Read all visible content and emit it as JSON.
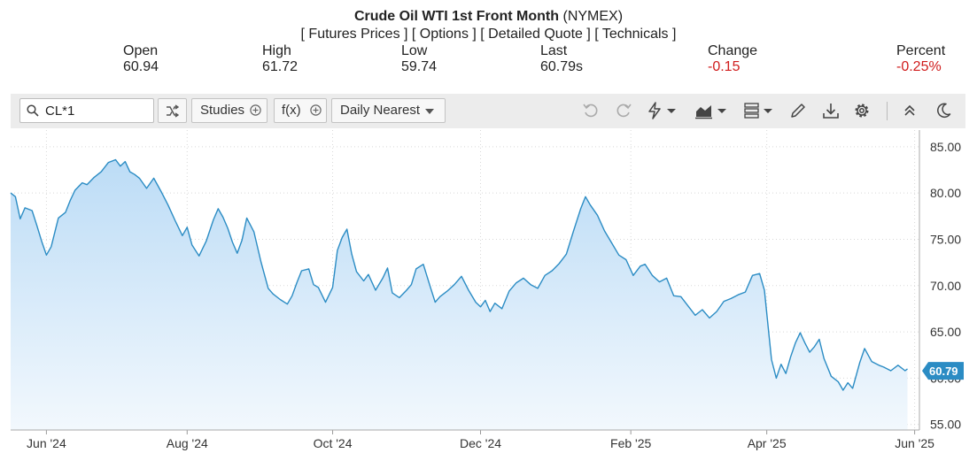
{
  "header": {
    "title": "Crude Oil WTI 1st Front Month",
    "exchange": "(NYMEX)",
    "links": [
      "[ Futures Prices ]",
      "[ Options ]",
      "[ Detailed Quote ]",
      "[ Technicals ]"
    ]
  },
  "stats": {
    "open": {
      "label": "Open",
      "value": "60.94"
    },
    "high": {
      "label": "High",
      "value": "61.72"
    },
    "low": {
      "label": "Low",
      "value": "59.74"
    },
    "last": {
      "label": "Last",
      "value": "60.79s"
    },
    "change": {
      "label": "Change",
      "value": "-0.15"
    },
    "percent": {
      "label": "Percent",
      "value": "-0.25%"
    }
  },
  "toolbar": {
    "symbol": "CL*1",
    "studies_label": "Studies",
    "fx_label": "f(x)",
    "interval_label": "Daily Nearest"
  },
  "colors": {
    "line": "#2b8cc4",
    "fill_top": "#bcdcf6",
    "fill_bottom": "#f2f8fd",
    "negative": "#d01c1c",
    "badge": "#2b8cc4"
  },
  "chart_data": {
    "type": "area",
    "title": "Crude Oil WTI 1st Front Month",
    "xlabel": "",
    "ylabel": "",
    "x_range": [
      "2024-05-19",
      "2025-06-04"
    ],
    "ylim": [
      54.4,
      86.8
    ],
    "yticks": [
      "85.00",
      "80.00",
      "75.00",
      "70.00",
      "65.00",
      "60.00",
      "55.00"
    ],
    "xticks": [
      {
        "label": "Jun '24",
        "date": "2024-06-03"
      },
      {
        "label": "Aug '24",
        "date": "2024-08-01"
      },
      {
        "label": "Oct '24",
        "date": "2024-10-01"
      },
      {
        "label": "Dec '24",
        "date": "2024-12-02"
      },
      {
        "label": "Feb '25",
        "date": "2025-02-03"
      },
      {
        "label": "Apr '25",
        "date": "2025-04-01"
      },
      {
        "label": "Jun '25",
        "date": "2025-06-02"
      }
    ],
    "last_value": "60.79",
    "grid": true,
    "series": [
      {
        "x": [
          "2024-05-19",
          "2024-05-21",
          "2024-05-23",
          "2024-05-25",
          "2024-05-28",
          "2024-05-30",
          "2024-06-01",
          "2024-06-03",
          "2024-06-05",
          "2024-06-08",
          "2024-06-11",
          "2024-06-13",
          "2024-06-15",
          "2024-06-18",
          "2024-06-20",
          "2024-06-23",
          "2024-06-26",
          "2024-06-29",
          "2024-07-02",
          "2024-07-04",
          "2024-07-06",
          "2024-07-08",
          "2024-07-10",
          "2024-07-12",
          "2024-07-15",
          "2024-07-18",
          "2024-07-21",
          "2024-07-24",
          "2024-07-27",
          "2024-07-30",
          "2024-08-01",
          "2024-08-03",
          "2024-08-06",
          "2024-08-09",
          "2024-08-12",
          "2024-08-14",
          "2024-08-16",
          "2024-08-18",
          "2024-08-20",
          "2024-08-22",
          "2024-08-24",
          "2024-08-26",
          "2024-08-29",
          "2024-09-01",
          "2024-09-04",
          "2024-09-06",
          "2024-09-09",
          "2024-09-12",
          "2024-09-14",
          "2024-09-16",
          "2024-09-18",
          "2024-09-21",
          "2024-09-23",
          "2024-09-25",
          "2024-09-28",
          "2024-10-01",
          "2024-10-03",
          "2024-10-05",
          "2024-10-07",
          "2024-10-09",
          "2024-10-11",
          "2024-10-14",
          "2024-10-16",
          "2024-10-19",
          "2024-10-22",
          "2024-10-24",
          "2024-10-26",
          "2024-10-29",
          "2024-11-01",
          "2024-11-03",
          "2024-11-05",
          "2024-11-08",
          "2024-11-11",
          "2024-11-13",
          "2024-11-15",
          "2024-11-18",
          "2024-11-21",
          "2024-11-24",
          "2024-11-27",
          "2024-11-30",
          "2024-12-02",
          "2024-12-04",
          "2024-12-06",
          "2024-12-08",
          "2024-12-11",
          "2024-12-14",
          "2024-12-17",
          "2024-12-20",
          "2024-12-23",
          "2024-12-26",
          "2024-12-29",
          "2025-01-01",
          "2025-01-04",
          "2025-01-07",
          "2025-01-10",
          "2025-01-13",
          "2025-01-15",
          "2025-01-17",
          "2025-01-20",
          "2025-01-23",
          "2025-01-26",
          "2025-01-29",
          "2025-02-01",
          "2025-02-04",
          "2025-02-07",
          "2025-02-09",
          "2025-02-12",
          "2025-02-15",
          "2025-02-18",
          "2025-02-21",
          "2025-02-24",
          "2025-02-27",
          "2025-03-02",
          "2025-03-05",
          "2025-03-08",
          "2025-03-11",
          "2025-03-14",
          "2025-03-17",
          "2025-03-20",
          "2025-03-23",
          "2025-03-26",
          "2025-03-29",
          "2025-03-31",
          "2025-04-03",
          "2025-04-05",
          "2025-04-07",
          "2025-04-09",
          "2025-04-11",
          "2025-04-13",
          "2025-04-15",
          "2025-04-17",
          "2025-04-19",
          "2025-04-21",
          "2025-04-23",
          "2025-04-25",
          "2025-04-28",
          "2025-05-01",
          "2025-05-03",
          "2025-05-05",
          "2025-05-07",
          "2025-05-10",
          "2025-05-12",
          "2025-05-15",
          "2025-05-18",
          "2025-05-20",
          "2025-05-23",
          "2025-05-26",
          "2025-05-29",
          "2025-05-30"
        ],
        "values": [
          80.0,
          79.6,
          77.2,
          78.4,
          78.1,
          76.5,
          74.8,
          73.3,
          74.2,
          77.3,
          77.9,
          79.2,
          80.3,
          81.1,
          80.9,
          81.7,
          82.3,
          83.3,
          83.6,
          82.9,
          83.4,
          82.3,
          82.0,
          81.6,
          80.5,
          81.6,
          80.2,
          78.7,
          77.0,
          75.4,
          76.3,
          74.4,
          73.2,
          74.8,
          77.1,
          78.3,
          77.4,
          76.2,
          74.7,
          73.5,
          74.9,
          77.3,
          75.8,
          72.5,
          69.7,
          69.1,
          68.5,
          68.0,
          68.9,
          70.3,
          71.6,
          71.8,
          70.1,
          69.8,
          68.2,
          69.8,
          73.8,
          75.2,
          76.1,
          73.4,
          71.5,
          70.5,
          71.2,
          69.5,
          70.8,
          71.9,
          69.2,
          68.7,
          69.5,
          70.1,
          71.8,
          72.3,
          69.8,
          68.2,
          68.8,
          69.4,
          70.1,
          71.0,
          69.5,
          68.2,
          67.7,
          68.4,
          67.2,
          68.1,
          67.5,
          69.4,
          70.3,
          70.8,
          70.1,
          69.7,
          71.1,
          71.6,
          72.4,
          73.4,
          75.9,
          78.3,
          79.6,
          78.7,
          77.6,
          75.9,
          74.6,
          73.3,
          72.8,
          71.1,
          72.1,
          72.3,
          71.1,
          70.4,
          70.8,
          68.9,
          68.8,
          67.8,
          66.8,
          67.4,
          66.5,
          67.2,
          68.3,
          68.6,
          69.0,
          69.3,
          71.1,
          71.3,
          69.5,
          62.0,
          60.0,
          61.5,
          60.5,
          62.3,
          63.8,
          64.9,
          63.8,
          62.8,
          63.4,
          64.2,
          62.1,
          60.2,
          59.6,
          58.7,
          59.5,
          58.9,
          61.7,
          63.2,
          61.8,
          61.4,
          61.2,
          60.8,
          61.4,
          60.8,
          61.0
        ]
      }
    ]
  }
}
